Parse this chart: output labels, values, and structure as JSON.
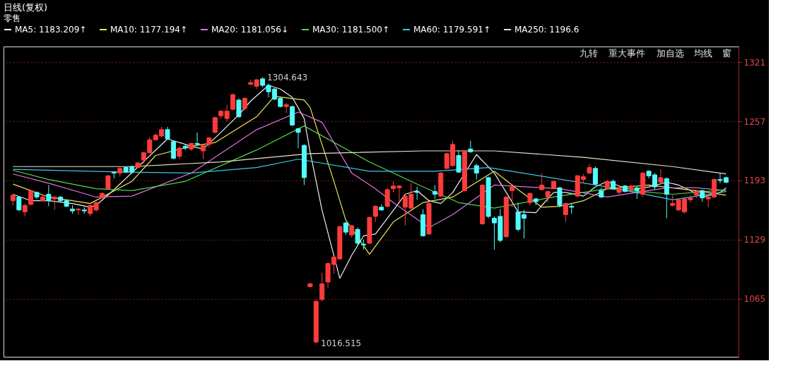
{
  "chart_data": {
    "type": "candlestick",
    "title": "日线(复权)",
    "subtitle": "零售",
    "categories": [
      null,
      null,
      null,
      null,
      null,
      null,
      null,
      null,
      null,
      null,
      null,
      null,
      null,
      null,
      null,
      null,
      null,
      null,
      null,
      null,
      null,
      null,
      null,
      null,
      null,
      null,
      null,
      null,
      null,
      null,
      null,
      null,
      null,
      null,
      null,
      null,
      null,
      null,
      null,
      null,
      null,
      null,
      null,
      null,
      null,
      null,
      null,
      null,
      null,
      null,
      null,
      null,
      null,
      null,
      null,
      null,
      null,
      null,
      null,
      null,
      null,
      null,
      null,
      null,
      null,
      null,
      null,
      null,
      null,
      null,
      null,
      null,
      null,
      null,
      null,
      null,
      null,
      null,
      null,
      null,
      null,
      null,
      null,
      null,
      null,
      null,
      null,
      null,
      null,
      null,
      null,
      null,
      null,
      null,
      null,
      null,
      null,
      null,
      null,
      null,
      null,
      null,
      null,
      null,
      null,
      null,
      null,
      null,
      null,
      null,
      null,
      null,
      null,
      null,
      null,
      null,
      null,
      null,
      null,
      null,
      null
    ],
    "ohlc": [
      [
        1171,
        1178,
        1166,
        1177
      ],
      [
        1175,
        1176,
        1160,
        1161
      ],
      [
        1159,
        1168,
        1154,
        1166
      ],
      [
        1167,
        1183,
        1166,
        1182
      ],
      [
        1180,
        1181,
        1173,
        1175
      ],
      [
        1171,
        1178,
        1170,
        1175
      ],
      [
        1178,
        1188,
        1165,
        1171
      ],
      [
        1173,
        1176,
        1161,
        1175
      ],
      [
        1175,
        1176,
        1170,
        1171
      ],
      [
        1171,
        1172,
        1164,
        1165
      ],
      [
        1162,
        1166,
        1157,
        1160
      ],
      [
        1161,
        1163,
        1156,
        1162
      ],
      [
        1161,
        1164,
        1157,
        1160
      ],
      [
        1157,
        1167,
        1154,
        1166
      ],
      [
        1161,
        1170,
        1159,
        1169
      ],
      [
        1174,
        1180,
        1173,
        1179
      ],
      [
        1184,
        1199,
        1183,
        1198
      ],
      [
        1202,
        1203,
        1195,
        1201
      ],
      [
        1201,
        1208,
        1197,
        1206
      ],
      [
        1207,
        1208,
        1201,
        1202
      ],
      [
        1208,
        1209,
        1200,
        1202
      ],
      [
        1207,
        1213,
        1206,
        1212
      ],
      [
        1215,
        1224,
        1211,
        1223
      ],
      [
        1223,
        1240,
        1222,
        1237
      ],
      [
        1237,
        1244,
        1236,
        1242
      ],
      [
        1241,
        1251,
        1240,
        1248
      ],
      [
        1248,
        1251,
        1237,
        1238
      ],
      [
        1235,
        1236,
        1216,
        1217
      ],
      [
        1219,
        1230,
        1216,
        1228
      ],
      [
        1230,
        1232,
        1226,
        1228
      ],
      [
        1227,
        1234,
        1225,
        1233
      ],
      [
        1233,
        1245,
        1231,
        1232
      ],
      [
        1225,
        1232,
        1216,
        1231
      ],
      [
        1232,
        1240,
        1229,
        1239
      ],
      [
        1245,
        1262,
        1244,
        1261
      ],
      [
        1263,
        1269,
        1260,
        1268
      ],
      [
        1260,
        1275,
        1257,
        1268
      ],
      [
        1270,
        1287,
        1269,
        1286
      ],
      [
        1280,
        1282,
        1261,
        1262
      ],
      [
        1271,
        1283,
        1269,
        1282
      ],
      [
        1297,
        1302,
        1296,
        1299
      ],
      [
        1295,
        1303,
        1292,
        1302
      ],
      [
        1303,
        1304.643,
        1294,
        1296
      ],
      [
        1296,
        1298,
        1283,
        1289
      ],
      [
        1292,
        1293,
        1280,
        1281
      ],
      [
        1282,
        1284,
        1272,
        1273
      ],
      [
        1273,
        1277,
        1266,
        1275
      ],
      [
        1273,
        1274,
        1252,
        1253
      ],
      [
        1249,
        1250,
        1228,
        1245
      ],
      [
        1231,
        1232,
        1188,
        1196
      ],
      [
        1078,
        1082,
        1077,
        1081
      ],
      [
        1018,
        1064,
        1016.515,
        1062
      ],
      [
        1064,
        1093,
        1062,
        1081
      ],
      [
        1083,
        1104,
        1076,
        1103
      ],
      [
        1102,
        1111,
        1092,
        1110
      ],
      [
        1108,
        1144,
        1107,
        1143
      ],
      [
        1147,
        1148,
        1134,
        1137
      ],
      [
        1134,
        1145,
        1131,
        1144
      ],
      [
        1140,
        1142,
        1123,
        1125
      ],
      [
        1124,
        1129,
        1118,
        1123
      ],
      [
        1125,
        1154,
        1124,
        1153
      ],
      [
        1154,
        1166,
        1148,
        1165
      ],
      [
        1164,
        1167,
        1160,
        1161
      ],
      [
        1165,
        1185,
        1164,
        1183
      ],
      [
        1184,
        1192,
        1180,
        1187
      ],
      [
        1185,
        1188,
        1170,
        1187
      ],
      [
        1164,
        1178,
        1144,
        1176
      ],
      [
        1163,
        1190,
        1161,
        1178
      ],
      [
        1181,
        1186,
        1172,
        1180
      ],
      [
        1156,
        1162,
        1132,
        1133
      ],
      [
        1135,
        1170,
        1134,
        1168
      ],
      [
        1181,
        1188,
        1173,
        1178
      ],
      [
        1176,
        1202,
        1175,
        1201
      ],
      [
        1206,
        1223,
        1205,
        1222
      ],
      [
        1209,
        1236,
        1208,
        1232
      ],
      [
        1220,
        1226,
        1201,
        1202
      ],
      [
        1182,
        1226,
        1181,
        1225
      ],
      [
        1227,
        1236,
        1223,
        1224
      ],
      [
        1209,
        1211,
        1194,
        1201
      ],
      [
        1146,
        1189,
        1145,
        1188
      ],
      [
        1196,
        1197,
        1152,
        1154
      ],
      [
        1152,
        1154,
        1118,
        1147
      ],
      [
        1154,
        1162,
        1126,
        1128
      ],
      [
        1132,
        1176,
        1131,
        1175
      ],
      [
        1182,
        1187,
        1164,
        1186
      ],
      [
        1159,
        1169,
        1138,
        1140
      ],
      [
        1156,
        1161,
        1130,
        1152
      ],
      [
        1169,
        1180,
        1166,
        1179
      ],
      [
        1173,
        1174,
        1166,
        1170
      ],
      [
        1183,
        1201,
        1182,
        1188
      ],
      [
        1175,
        1182,
        1169,
        1181
      ],
      [
        1184,
        1193,
        1183,
        1192
      ],
      [
        1185,
        1186,
        1164,
        1166
      ],
      [
        1156,
        1169,
        1148,
        1168
      ],
      [
        1165,
        1168,
        1157,
        1164
      ],
      [
        1176,
        1199,
        1175,
        1198
      ],
      [
        1194,
        1200,
        1190,
        1197
      ],
      [
        1201,
        1211,
        1200,
        1207
      ],
      [
        1206,
        1208,
        1188,
        1189
      ],
      [
        1182,
        1185,
        1174,
        1175
      ],
      [
        1184,
        1193,
        1183,
        1192
      ],
      [
        1192,
        1194,
        1183,
        1184
      ],
      [
        1180,
        1186,
        1178,
        1185
      ],
      [
        1187,
        1188,
        1180,
        1181
      ],
      [
        1183,
        1188,
        1180,
        1187
      ],
      [
        1185,
        1186,
        1173,
        1182
      ],
      [
        1178,
        1202,
        1175,
        1201
      ],
      [
        1203,
        1204,
        1195,
        1198
      ],
      [
        1199,
        1201,
        1183,
        1186
      ],
      [
        1191,
        1205,
        1189,
        1196
      ],
      [
        1195,
        1196,
        1152,
        1178
      ],
      [
        1166,
        1177,
        1165,
        1168
      ],
      [
        1161,
        1173,
        1160,
        1172
      ],
      [
        1159,
        1175,
        1157,
        1173
      ],
      [
        1172,
        1177,
        1169,
        1174
      ],
      [
        1177,
        1182,
        1174,
        1181
      ],
      [
        1182,
        1183,
        1170,
        1174
      ],
      [
        1173,
        1176,
        1164,
        1175
      ],
      [
        1175,
        1195,
        1174,
        1194
      ],
      [
        1194,
        1201,
        1190,
        1193
      ],
      [
        1196,
        1197,
        1190,
        1191
      ]
    ],
    "colors": [
      "#ff3c3c",
      "#54fcfc",
      "#ff3c3c",
      "#ff3c3c",
      "#54fcfc",
      "#ff3c3c",
      "#54fcfc",
      "#ff3c3c",
      "#54fcfc",
      "#54fcfc",
      "#54fcfc",
      "#ff3c3c",
      "#54fcfc",
      "#ff3c3c",
      "#ff3c3c",
      "#ff3c3c",
      "#ff3c3c",
      "#54fcfc",
      "#ff3c3c",
      "#54fcfc",
      "#54fcfc",
      "#ff3c3c",
      "#ff3c3c",
      "#ff3c3c",
      "#ff3c3c",
      "#ff3c3c",
      "#54fcfc",
      "#54fcfc",
      "#ff3c3c",
      "#54fcfc",
      "#ff3c3c",
      "#54fcfc",
      "#ff3c3c",
      "#ff3c3c",
      "#ff3c3c",
      "#ff3c3c",
      "#ff3c3c",
      "#ff3c3c",
      "#54fcfc",
      "#ff3c3c",
      "#ff3c3c",
      "#ff3c3c",
      "#54fcfc",
      "#54fcfc",
      "#54fcfc",
      "#54fcfc",
      "#ff3c3c",
      "#54fcfc",
      "#54fcfc",
      "#54fcfc",
      "#ff3c3c",
      "#ff3c3c",
      "#ff3c3c",
      "#ff3c3c",
      "#ff3c3c",
      "#ff3c3c",
      "#54fcfc",
      "#ff3c3c",
      "#54fcfc",
      "#54fcfc",
      "#ff3c3c",
      "#ff3c3c",
      "#54fcfc",
      "#ff3c3c",
      "#ff3c3c",
      "#ff3c3c",
      "#ff3c3c",
      "#ff3c3c",
      "#54fcfc",
      "#54fcfc",
      "#ff3c3c",
      "#54fcfc",
      "#ff3c3c",
      "#ff3c3c",
      "#ff3c3c",
      "#54fcfc",
      "#ff3c3c",
      "#54fcfc",
      "#54fcfc",
      "#ff3c3c",
      "#54fcfc",
      "#54fcfc",
      "#54fcfc",
      "#ff3c3c",
      "#ff3c3c",
      "#54fcfc",
      "#54fcfc",
      "#ff3c3c",
      "#54fcfc",
      "#ff3c3c",
      "#ff3c3c",
      "#ff3c3c",
      "#54fcfc",
      "#ff3c3c",
      "#54fcfc",
      "#ff3c3c",
      "#ff3c3c",
      "#ff3c3c",
      "#54fcfc",
      "#54fcfc",
      "#ff3c3c",
      "#54fcfc",
      "#ff3c3c",
      "#54fcfc",
      "#ff3c3c",
      "#54fcfc",
      "#ff3c3c",
      "#54fcfc",
      "#54fcfc",
      "#ff3c3c",
      "#54fcfc",
      "#ff3c3c",
      "#ff3c3c",
      "#ff3c3c",
      "#ff3c3c",
      "#ff3c3c",
      "#54fcfc",
      "#ff3c3c",
      "#ff3c3c",
      "#54fcfc",
      "#54fcfc"
    ],
    "series": [
      {
        "type": "line",
        "name": "MA5: 1183.209↑",
        "color": "#f0f0f0",
        "values": [
          1178,
          null,
          null,
          1171,
          null,
          null,
          1171,
          null,
          null,
          null,
          1168,
          null,
          null,
          1164,
          1166,
          null,
          null,
          1183,
          null,
          null,
          null,
          null,
          null,
          null,
          null,
          null,
          1238,
          null,
          null,
          null,
          1230,
          null,
          1227,
          null,
          1239,
          null,
          null,
          null,
          1264,
          null,
          1279,
          null,
          null,
          1296,
          null,
          1292,
          null,
          1283,
          null,
          1260,
          1224,
          null,
          1161,
          null,
          null,
          1087,
          null,
          1112,
          null,
          1133,
          null,
          1135,
          null,
          1152,
          null,
          null,
          1178,
          null,
          1182,
          null,
          1171,
          null,
          1168,
          null,
          1180,
          null,
          null,
          null,
          1221,
          null,
          null,
          1201,
          null,
          null,
          null,
          1159,
          null,
          null,
          1158,
          1166,
          null,
          1180,
          null,
          1180,
          null,
          null,
          1176,
          null,
          1186,
          null,
          1192,
          null,
          1187,
          null,
          1183,
          null,
          null,
          1186,
          null,
          null,
          1191,
          null,
          1188,
          null,
          1182,
          null,
          1175,
          null,
          1178,
          1180,
          1185
        ]
      },
      {
        "type": "line",
        "name": "MA10: 1177.194↑",
        "color": "#e8e85a",
        "values": [
          1189,
          null,
          null,
          null,
          null,
          null,
          1175,
          null,
          null,
          null,
          null,
          null,
          null,
          1168,
          null,
          null,
          null,
          null,
          null,
          null,
          1192,
          null,
          null,
          null,
          1220,
          null,
          null,
          null,
          null,
          null,
          1230,
          null,
          null,
          null,
          1234,
          null,
          null,
          null,
          null,
          null,
          null,
          1262,
          null,
          null,
          1284,
          null,
          null,
          null,
          null,
          1280,
          1272,
          null,
          null,
          null,
          1192,
          null,
          1150,
          null,
          null,
          null,
          1113,
          null,
          null,
          null,
          1148,
          null,
          null,
          null,
          null,
          1169,
          null,
          null,
          null,
          null,
          1175,
          null,
          null,
          null,
          null,
          null,
          null,
          1203,
          null,
          null,
          null,
          1183,
          null,
          null,
          null,
          1164,
          null,
          null,
          1165,
          null,
          null,
          null,
          1171,
          null,
          null,
          null,
          1184,
          null,
          null,
          null,
          null,
          null,
          null,
          1188,
          null,
          null,
          null,
          null,
          null,
          null,
          null,
          null,
          1181,
          null,
          null,
          null,
          1177
        ]
      },
      {
        "type": "line",
        "name": "MA20: 1181.056↓",
        "color": "#e070e0",
        "values": [
          1200,
          null,
          null,
          null,
          null,
          null,
          1190,
          null,
          null,
          null,
          null,
          null,
          null,
          null,
          1175,
          null,
          null,
          null,
          null,
          null,
          1176,
          null,
          null,
          null,
          null,
          null,
          null,
          null,
          null,
          null,
          1201,
          null,
          null,
          null,
          null,
          null,
          null,
          null,
          null,
          null,
          null,
          1248,
          null,
          null,
          null,
          null,
          null,
          null,
          1267,
          null,
          null,
          null,
          1256,
          null,
          null,
          null,
          null,
          1201,
          null,
          null,
          null,
          1184,
          null,
          null,
          1169,
          null,
          null,
          null,
          null,
          null,
          1142,
          null,
          null,
          null,
          1156,
          null,
          null,
          null,
          null,
          null,
          null,
          1188,
          null,
          null,
          null,
          null,
          null,
          null,
          null,
          null,
          null,
          null,
          1184,
          null,
          null,
          null,
          null,
          null,
          null,
          null,
          1175,
          null,
          null,
          null,
          null,
          null,
          null,
          null,
          null,
          null,
          1185,
          null,
          null,
          null,
          null,
          1185,
          null,
          null,
          null,
          null,
          1182
        ]
      },
      {
        "type": "line",
        "name": "MA30: 1181.500↑",
        "color": "#4ed84e",
        "values": [
          1204,
          null,
          null,
          null,
          null,
          null,
          1194,
          null,
          null,
          null,
          null,
          null,
          null,
          null,
          1184,
          null,
          null,
          null,
          null,
          null,
          1182,
          null,
          null,
          null,
          null,
          null,
          null,
          null,
          null,
          1192,
          null,
          null,
          null,
          null,
          null,
          null,
          null,
          null,
          null,
          null,
          null,
          1226,
          null,
          null,
          null,
          null,
          null,
          null,
          null,
          1252,
          null,
          null,
          null,
          null,
          null,
          null,
          null,
          null,
          null,
          null,
          1213,
          null,
          null,
          null,
          null,
          null,
          null,
          null,
          null,
          1186,
          null,
          null,
          null,
          null,
          null,
          1169,
          null,
          null,
          null,
          null,
          null,
          1163,
          null,
          null,
          null,
          null,
          null,
          null,
          null,
          null,
          null,
          1175,
          null,
          null,
          null,
          null,
          null,
          null,
          null,
          null,
          1184,
          null,
          null,
          null,
          null,
          null,
          null,
          null,
          null,
          null,
          null,
          1178,
          null,
          null,
          null,
          null,
          null,
          null,
          null,
          null,
          1183
        ]
      },
      {
        "type": "line",
        "name": "MA60: 1179.591↑",
        "color": "#3cc8e6",
        "values": [
          1205,
          null,
          null,
          null,
          null,
          null,
          null,
          null,
          null,
          null,
          null,
          null,
          null,
          null,
          null,
          null,
          null,
          null,
          null,
          1202,
          null,
          null,
          null,
          null,
          null,
          null,
          null,
          null,
          null,
          null,
          1201,
          null,
          null,
          null,
          null,
          null,
          null,
          null,
          null,
          null,
          null,
          1207,
          null,
          null,
          null,
          null,
          null,
          null,
          1216,
          null,
          null,
          null,
          null,
          null,
          null,
          null,
          null,
          null,
          null,
          null,
          1203,
          null,
          null,
          null,
          null,
          null,
          null,
          null,
          null,
          null,
          null,
          1203,
          null,
          null,
          null,
          null,
          null,
          null,
          null,
          null,
          1207,
          null,
          null,
          null,
          null,
          null,
          null,
          null,
          null,
          null,
          null,
          null,
          null,
          null,
          null,
          null,
          null,
          null,
          null,
          null,
          1186,
          null,
          null,
          null,
          1181,
          null,
          null,
          null,
          null,
          null,
          null,
          1172,
          null,
          null,
          null,
          null,
          null,
          null,
          null,
          null,
          1181
        ]
      },
      {
        "type": "line",
        "name": "MA250: 1196.6",
        "color": "#e8e4c8",
        "values": [
          1208,
          null,
          null,
          null,
          null,
          null,
          null,
          null,
          null,
          null,
          null,
          null,
          null,
          null,
          null,
          null,
          null,
          null,
          null,
          null,
          1208,
          null,
          null,
          null,
          null,
          null,
          null,
          null,
          null,
          null,
          null,
          null,
          null,
          null,
          null,
          1213,
          null,
          null,
          null,
          null,
          null,
          null,
          null,
          null,
          null,
          null,
          null,
          null,
          null,
          null,
          1222,
          null,
          null,
          null,
          null,
          null,
          null,
          null,
          null,
          null,
          null,
          null,
          null,
          null,
          null,
          null,
          null,
          null,
          null,
          1225,
          null,
          null,
          null,
          null,
          null,
          null,
          null,
          null,
          null,
          null,
          null,
          1225,
          null,
          null,
          null,
          null,
          null,
          null,
          null,
          null,
          null,
          null,
          null,
          null,
          null,
          null,
          1218,
          null,
          null,
          null,
          null,
          null,
          null,
          null,
          null,
          null,
          null,
          null,
          null,
          null,
          null,
          1208,
          null,
          null,
          null,
          null,
          null,
          null,
          null,
          null,
          1200
        ]
      }
    ],
    "ylim": [
      1002,
      1338
    ],
    "yticks": [
      1065,
      1129,
      1193,
      1257,
      1321
    ],
    "tick_labels": "y",
    "grid": "y",
    "legend": "top",
    "line_style": "solid",
    "annotations": [
      "1304.643",
      "1016.515",
      "九转",
      "重大事件",
      "加自选",
      "均线",
      "窗"
    ]
  }
}
